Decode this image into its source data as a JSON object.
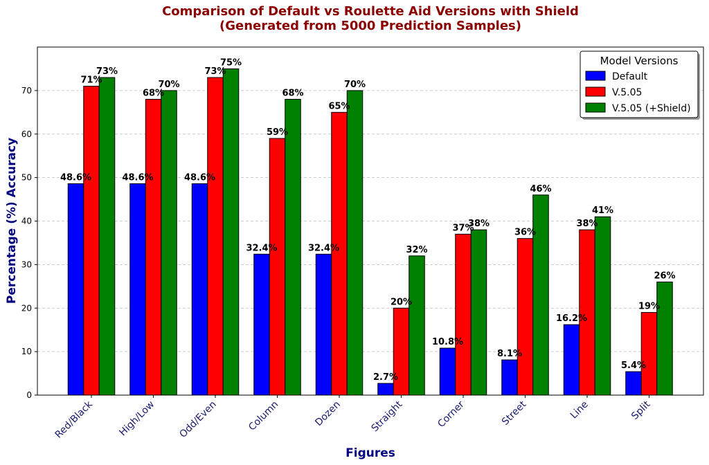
{
  "colors": {
    "title": "#8b0000",
    "axis_label": "#000080",
    "xtick": "#191970",
    "grid": "#bbbbbb"
  },
  "chart_data": {
    "type": "bar",
    "title": "Comparison of Default vs Roulette Aid Versions with Shield",
    "subtitle": "(Generated from 5000 Prediction Samples)",
    "xlabel": "Figures",
    "ylabel": "Percentage (%) Accuracy",
    "ylim": [
      0,
      80
    ],
    "yticks": [
      0,
      10,
      20,
      30,
      40,
      50,
      60,
      70
    ],
    "grid": true,
    "categories": [
      "Red/Black",
      "High/Low",
      "Odd/Even",
      "Column",
      "Dozen",
      "Straight",
      "Corner",
      "Street",
      "Line",
      "Split"
    ],
    "legend": {
      "title": "Model Versions",
      "position": "top-right"
    },
    "series": [
      {
        "name": "Default",
        "color": "#0000ff",
        "values": [
          48.6,
          48.6,
          48.6,
          32.4,
          32.4,
          2.7,
          10.8,
          8.1,
          16.2,
          5.4
        ],
        "labels": [
          "48.6%",
          "48.6%",
          "48.6%",
          "32.4%",
          "32.4%",
          "2.7%",
          "10.8%",
          "8.1%",
          "16.2%",
          "5.4%"
        ]
      },
      {
        "name": "V.5.05",
        "color": "#ff0000",
        "values": [
          71,
          68,
          73,
          59,
          65,
          20,
          37,
          36,
          38,
          19
        ],
        "labels": [
          "71%",
          "68%",
          "73%",
          "59%",
          "65%",
          "20%",
          "37%",
          "36%",
          "38%",
          "19%"
        ]
      },
      {
        "name": "V.5.05 (+Shield)",
        "color": "#008000",
        "values": [
          73,
          70,
          75,
          68,
          70,
          32,
          38,
          46,
          41,
          26
        ],
        "labels": [
          "73%",
          "70%",
          "75%",
          "68%",
          "70%",
          "32%",
          "38%",
          "46%",
          "41%",
          "26%"
        ]
      }
    ]
  }
}
